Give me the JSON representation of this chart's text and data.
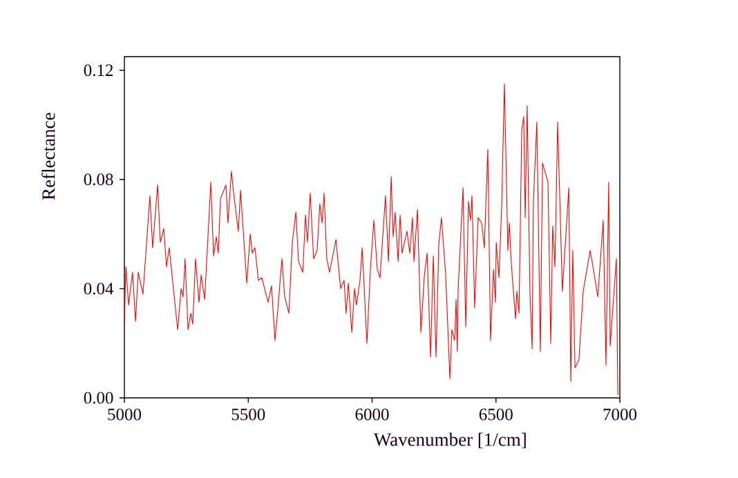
{
  "chart_data": {
    "type": "line",
    "xlabel": "Wavenumber [1/cm]",
    "ylabel": "Reflectance",
    "xlim": [
      5000,
      7000
    ],
    "ylim": [
      0,
      0.125
    ],
    "xticks": [
      5000,
      5500,
      6000,
      6500,
      7000
    ],
    "yticks": [
      {
        "value": 0,
        "label": "0.00"
      },
      {
        "value": 0.04,
        "label": "0.04"
      },
      {
        "value": 0.08,
        "label": "0.08"
      },
      {
        "value": 0.12,
        "label": "0.12"
      }
    ],
    "grid": false,
    "marker": "none",
    "line_style": "solid",
    "series": [
      {
        "color": "#ff0000",
        "x": [
          5000,
          5006,
          5017,
          5033,
          5045,
          5056,
          5075,
          5103,
          5114,
          5134,
          5145,
          5159,
          5170,
          5181,
          5215,
          5229,
          5237,
          5245,
          5257,
          5268,
          5276,
          5287,
          5301,
          5310,
          5324,
          5349,
          5360,
          5371,
          5379,
          5388,
          5410,
          5418,
          5432,
          5441,
          5460,
          5469,
          5494,
          5508,
          5516,
          5527,
          5541,
          5555,
          5566,
          5580,
          5594,
          5608,
          5619,
          5636,
          5647,
          5664,
          5678,
          5692,
          5703,
          5720,
          5731,
          5739,
          5750,
          5764,
          5778,
          5789,
          5798,
          5806,
          5817,
          5828,
          5854,
          5873,
          5887,
          5895,
          5904,
          5918,
          5929,
          5937,
          5951,
          5960,
          5979,
          5993,
          6007,
          6021,
          6032,
          6054,
          6066,
          6077,
          6085,
          6093,
          6105,
          6113,
          6121,
          6133,
          6141,
          6152,
          6163,
          6169,
          6183,
          6197,
          6211,
          6222,
          6236,
          6247,
          6258,
          6269,
          6280,
          6297,
          6314,
          6322,
          6333,
          6339,
          6344,
          6347,
          6367,
          6378,
          6389,
          6397,
          6403,
          6414,
          6428,
          6442,
          6453,
          6467,
          6478,
          6490,
          6498,
          6501,
          6512,
          6523,
          6534,
          6548,
          6554,
          6562,
          6579,
          6584,
          6593,
          6604,
          6612,
          6618,
          6626,
          6637,
          6646,
          6651,
          6665,
          6679,
          6688,
          6699,
          6710,
          6721,
          6729,
          6738,
          6749,
          6768,
          6782,
          6794,
          6802,
          6810,
          6819,
          6827,
          6835,
          6844,
          6852,
          6866,
          6880,
          6888,
          6902,
          6911,
          6922,
          6933,
          6944,
          6955,
          6961,
          6972,
          6986,
          6992
        ],
        "values": [
          0.027,
          0.048,
          0.034,
          0.046,
          0.028,
          0.046,
          0.038,
          0.074,
          0.055,
          0.078,
          0.057,
          0.062,
          0.048,
          0.055,
          0.025,
          0.04,
          0.037,
          0.051,
          0.025,
          0.031,
          0.027,
          0.051,
          0.035,
          0.045,
          0.036,
          0.079,
          0.052,
          0.059,
          0.053,
          0.073,
          0.078,
          0.064,
          0.083,
          0.075,
          0.061,
          0.076,
          0.042,
          0.06,
          0.053,
          0.055,
          0.043,
          0.044,
          0.04,
          0.035,
          0.041,
          0.021,
          0.032,
          0.051,
          0.037,
          0.031,
          0.057,
          0.068,
          0.05,
          0.046,
          0.067,
          0.057,
          0.075,
          0.051,
          0.054,
          0.071,
          0.064,
          0.075,
          0.051,
          0.046,
          0.058,
          0.04,
          0.043,
          0.031,
          0.042,
          0.024,
          0.04,
          0.034,
          0.043,
          0.055,
          0.02,
          0.047,
          0.065,
          0.047,
          0.044,
          0.074,
          0.05,
          0.081,
          0.059,
          0.068,
          0.05,
          0.067,
          0.053,
          0.058,
          0.061,
          0.053,
          0.066,
          0.05,
          0.069,
          0.024,
          0.045,
          0.053,
          0.015,
          0.052,
          0.015,
          0.056,
          0.066,
          0.045,
          0.007,
          0.025,
          0.021,
          0.036,
          0.017,
          0.039,
          0.077,
          0.026,
          0.072,
          0.065,
          0.074,
          0.033,
          0.066,
          0.064,
          0.055,
          0.091,
          0.021,
          0.047,
          0.035,
          0.057,
          0.044,
          0.07,
          0.115,
          0.054,
          0.064,
          0.049,
          0.029,
          0.039,
          0.031,
          0.098,
          0.103,
          0.066,
          0.107,
          0.039,
          0.018,
          0.072,
          0.101,
          0.017,
          0.086,
          null,
          0.079,
          0.02,
          0.063,
          0.048,
          0.101,
          0.039,
          null,
          0.077,
          0.006,
          0.054,
          0.011,
          null,
          0.014,
          null,
          0.039,
          null,
          0.054,
          0.05,
          null,
          0.037,
          null,
          0.065,
          0.012,
          0.079,
          0.019,
          null,
          0.051,
          0.001
        ]
      }
    ]
  }
}
